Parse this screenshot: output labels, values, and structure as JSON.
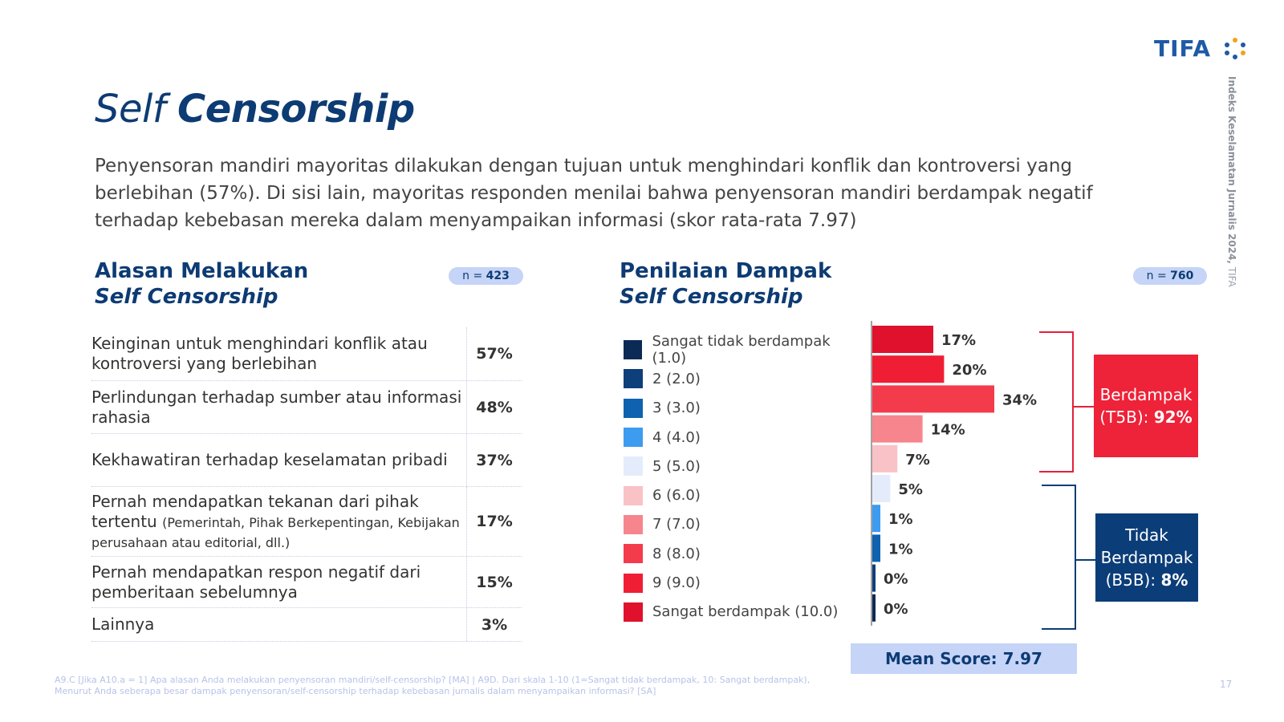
{
  "brand": {
    "logo_text": "TIFA"
  },
  "side_label": {
    "bold": "Indeks Keselamatan Jurnalis 2024,",
    "normal": "TIFA"
  },
  "title": {
    "light": "Self",
    "bold": "Censorship"
  },
  "subtitle": "Penyensoran mandiri mayoritas dilakukan dengan tujuan untuk menghindari konflik dan kontroversi yang berlebihan (57%). Di sisi lain, mayoritas responden menilai bahwa penyensoran mandiri berdampak negatif terhadap kebebasan mereka dalam menyampaikan informasi (skor rata-rata 7.97)",
  "left_section": {
    "title_line1": "Alasan Melakukan",
    "title_line2": "Self Censorship",
    "n_prefix": "n = ",
    "n_value": "423",
    "rows": [
      {
        "label": "Keinginan untuk menghindari konflik atau kontroversi yang berlebihan",
        "label_small": "",
        "value": "57%"
      },
      {
        "label": "Perlindungan terhadap sumber atau informasi rahasia",
        "label_small": "",
        "value": "48%"
      },
      {
        "label": "Kekhawatiran terhadap keselamatan pribadi",
        "label_small": "",
        "value": "37%"
      },
      {
        "label": "Pernah mendapatkan tekanan dari pihak tertentu",
        "label_small": "(Pemerintah, Pihak Berkepentingan, Kebijakan perusahaan atau editorial, dll.)",
        "value": "17%"
      },
      {
        "label": "Pernah mendapatkan respon negatif dari pemberitaan sebelumnya",
        "label_small": "",
        "value": "15%"
      },
      {
        "label": "Lainnya",
        "label_small": "",
        "value": "3%"
      }
    ]
  },
  "right_section": {
    "title_line1": "Penilaian Dampak",
    "title_line2": "Self Censorship",
    "n_prefix": "n = ",
    "n_value": "760",
    "legend": [
      {
        "label": "Sangat tidak berdampak (1.0)",
        "color": "#0b2a55"
      },
      {
        "label": "2 (2.0)",
        "color": "#0d3f7a"
      },
      {
        "label": "3 (3.0)",
        "color": "#0e62b0"
      },
      {
        "label": "4 (4.0)",
        "color": "#3d9bf0"
      },
      {
        "label": "5 (5.0)",
        "color": "#e4ecfb"
      },
      {
        "label": "6 (6.0)",
        "color": "#f9c2c6"
      },
      {
        "label": "7 (7.0)",
        "color": "#f7858d"
      },
      {
        "label": "8 (8.0)",
        "color": "#f43b4c"
      },
      {
        "label": "9 (9.0)",
        "color": "#ef1e34"
      },
      {
        "label": "Sangat berdampak (10.0)",
        "color": "#e0112d"
      }
    ],
    "top_box": {
      "line1": "Berdampak",
      "line2_prefix": "(T5B): ",
      "line2_value": "92%"
    },
    "bottom_box": {
      "line1": "Tidak",
      "line2": "Berdampak",
      "line3_prefix": "(B5B): ",
      "line3_value": "8%"
    },
    "mean_score": "Mean Score: 7.97"
  },
  "chart_data": {
    "type": "bar",
    "orientation": "horizontal",
    "categories": [
      "Sangat berdampak (10.0)",
      "9 (9.0)",
      "8 (8.0)",
      "7 (7.0)",
      "6 (6.0)",
      "5 (5.0)",
      "4 (4.0)",
      "3 (3.0)",
      "2 (2.0)",
      "Sangat tidak berdampak (1.0)"
    ],
    "values": [
      17,
      20,
      34,
      14,
      7,
      5,
      1,
      1,
      0,
      0
    ],
    "value_labels": [
      "17%",
      "20%",
      "34%",
      "14%",
      "7%",
      "5%",
      "1%",
      "1%",
      "0%",
      "0%"
    ],
    "colors": [
      "#e0112d",
      "#ef1e34",
      "#f43b4c",
      "#f7858d",
      "#f9c2c6",
      "#e4ecfb",
      "#3d9bf0",
      "#0e62b0",
      "#0d3f7a",
      "#0b2a55"
    ],
    "xlim": [
      0,
      34
    ],
    "grid": false
  },
  "footnote": "A9.C [Jika A10.a = 1] Apa alasan Anda melakukan penyensoran mandiri/self-censorship? [MA] | A9D. Dari skala 1-10 (1=Sangat tidak berdampak, 10: Sangat berdampak), Menurut Anda seberapa besar dampak penyensoran/self-censorship terhadap kebebasan jurnalis dalam menyampaikan informasi? [SA]",
  "page_number": "17"
}
